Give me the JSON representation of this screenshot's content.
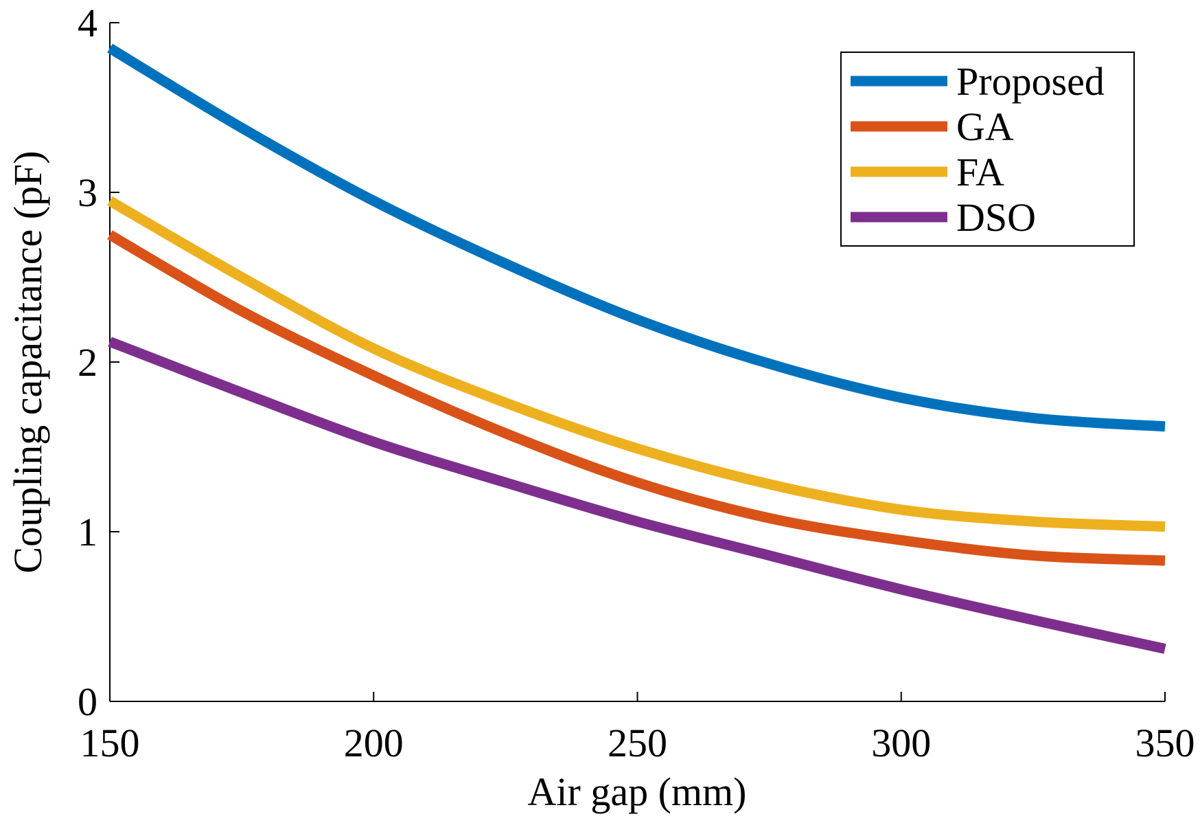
{
  "chart_data": {
    "type": "line",
    "x_label": "Air gap (mm)",
    "y_label": "Coupling capacitance (pF)",
    "x": [
      150,
      175,
      200,
      225,
      250,
      275,
      300,
      325,
      350
    ],
    "series": [
      {
        "name": "Proposed",
        "color": "#0072bd",
        "values": [
          3.85,
          3.38,
          2.95,
          2.58,
          2.25,
          1.99,
          1.79,
          1.67,
          1.62
        ]
      },
      {
        "name": "GA",
        "color": "#d95319",
        "values": [
          2.75,
          2.3,
          1.92,
          1.58,
          1.29,
          1.08,
          0.95,
          0.86,
          0.83
        ]
      },
      {
        "name": "FA",
        "color": "#edb120",
        "values": [
          2.95,
          2.5,
          2.08,
          1.76,
          1.49,
          1.28,
          1.13,
          1.06,
          1.03
        ]
      },
      {
        "name": "DSO",
        "color": "#7e2f8e",
        "values": [
          2.12,
          1.82,
          1.53,
          1.29,
          1.06,
          0.86,
          0.66,
          0.48,
          0.31
        ]
      }
    ],
    "xlim": [
      150,
      350
    ],
    "xticks": [
      150,
      200,
      250,
      300,
      350
    ],
    "ylim": [
      0,
      4
    ],
    "yticks": [
      0,
      1,
      2,
      3,
      4
    ],
    "legend": "top-right",
    "grid": false
  }
}
